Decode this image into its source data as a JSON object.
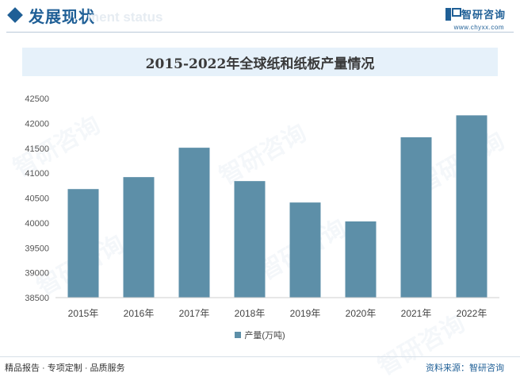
{
  "header": {
    "title": "发展现状",
    "ghost_text": "ment status",
    "brand_name": "智研咨询",
    "brand_url": "www.chyxx.com",
    "watermark_text": "智研咨询"
  },
  "legend": {
    "label": "产量(万吨)"
  },
  "footer": {
    "left": "精品报告 · 专项定制 · 品质服务",
    "right": "资料来源：智研咨询"
  },
  "colors": {
    "bar": "#5d8fa8",
    "accent": "#1f5f96",
    "title_bg": "#e6f1fa"
  },
  "chart_data": {
    "type": "bar",
    "title": "2015-2022年全球纸和纸板产量情况",
    "categories": [
      "2015年",
      "2016年",
      "2017年",
      "2018年",
      "2019年",
      "2020年",
      "2021年",
      "2022年"
    ],
    "series": [
      {
        "name": "产量(万吨)",
        "values": [
          40680,
          40920,
          41510,
          40840,
          40410,
          40030,
          41720,
          42160
        ]
      }
    ],
    "ylim": [
      38500,
      42500
    ],
    "yticks": [
      38500,
      39000,
      39500,
      40000,
      40500,
      41000,
      41500,
      42000,
      42500
    ],
    "grid": false,
    "legend_position": "bottom"
  }
}
